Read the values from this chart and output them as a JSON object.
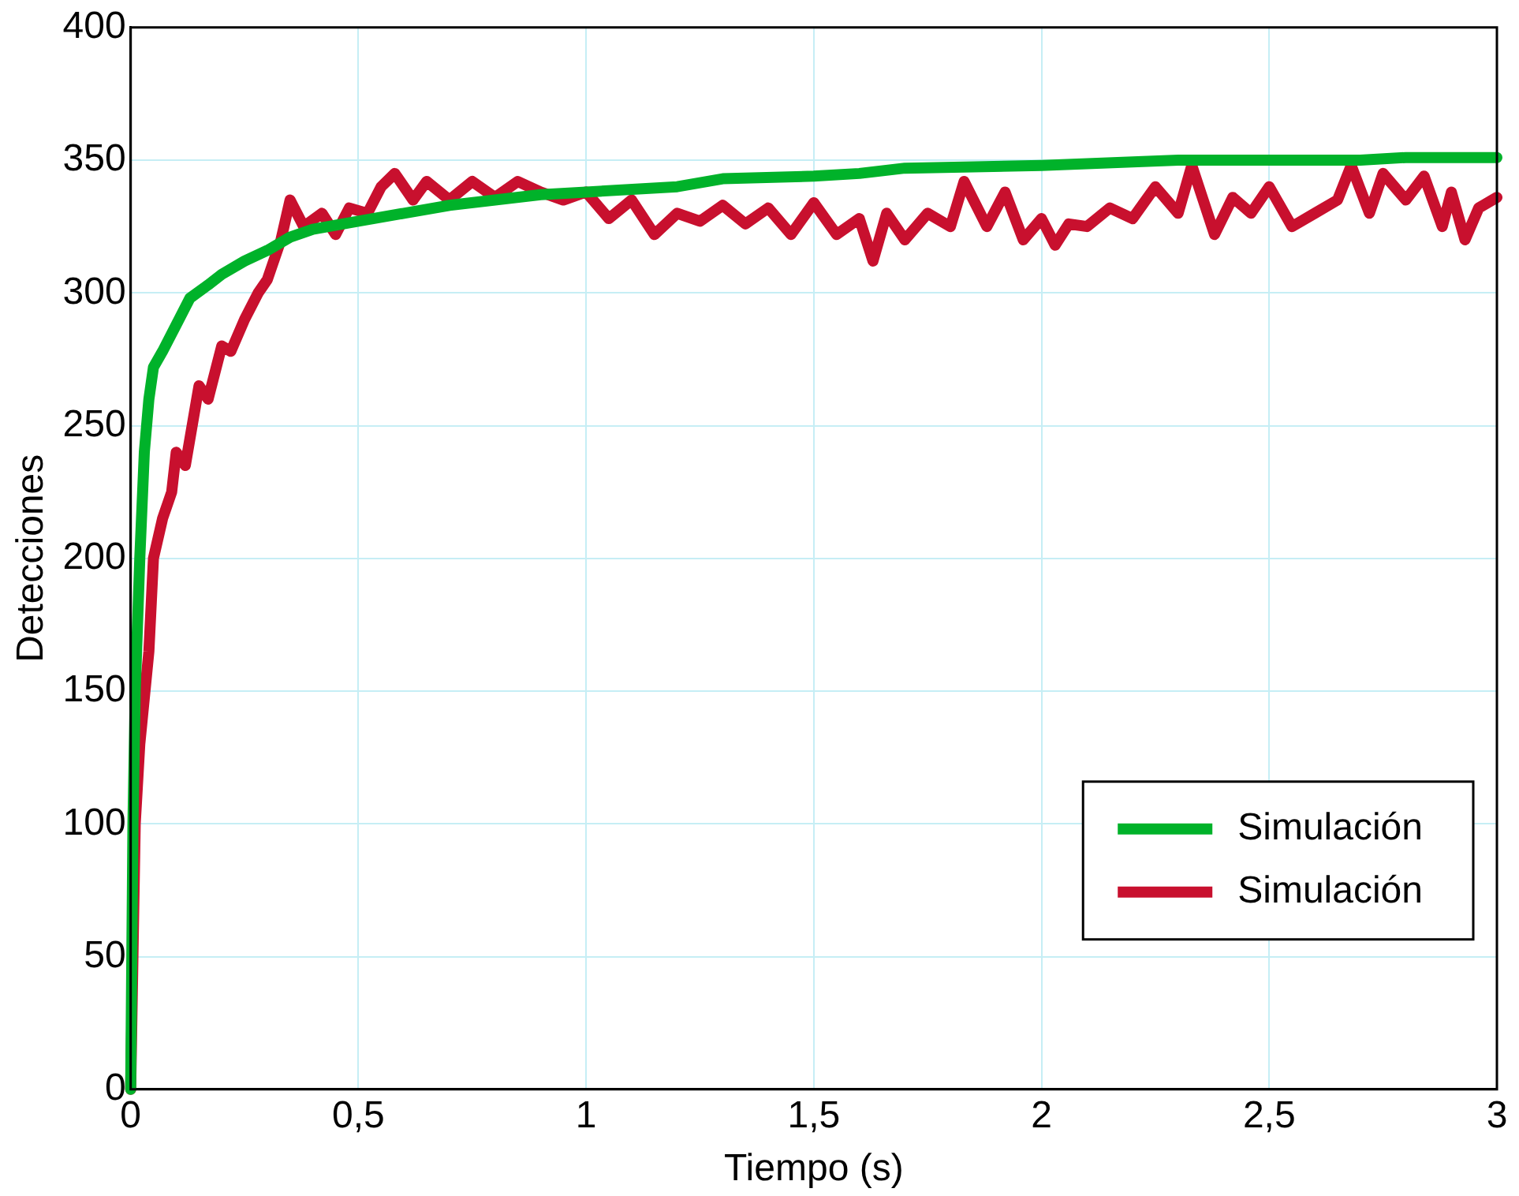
{
  "chart_data": {
    "type": "line",
    "xlabel": "Tiempo (s)",
    "ylabel": "Detecciones",
    "xlim": [
      0,
      3
    ],
    "ylim": [
      0,
      400
    ],
    "xticks": [
      0,
      {
        "value": 0.5,
        "label": "0,5"
      },
      1,
      {
        "value": 1.5,
        "label": "1,5"
      },
      2,
      {
        "value": 2.5,
        "label": "2,5"
      },
      3
    ],
    "yticks": [
      0,
      50,
      100,
      150,
      200,
      250,
      300,
      350,
      400
    ],
    "grid": true,
    "legend": "bottom right",
    "marker": "none",
    "line_style": "solid",
    "series": [
      {
        "name": "Simulación",
        "color": "#00b22a",
        "x": [
          0,
          0.005,
          0.01,
          0.02,
          0.03,
          0.04,
          0.05,
          0.07,
          0.1,
          0.13,
          0.17,
          0.2,
          0.25,
          0.3,
          0.35,
          0.4,
          0.5,
          0.6,
          0.7,
          0.8,
          0.9,
          1.0,
          1.2,
          1.3,
          1.5,
          1.6,
          1.7,
          2.0,
          2.3,
          2.7,
          2.8,
          3
        ],
        "values": [
          0,
          100,
          150,
          200,
          240,
          260,
          272,
          278,
          288,
          298,
          303,
          307,
          312,
          316,
          321,
          324,
          327,
          330,
          333,
          335,
          337,
          338,
          340,
          343,
          344,
          345,
          347,
          348,
          350,
          350,
          351,
          351
        ]
      },
      {
        "name": "Simulación",
        "color": "#c8102e",
        "x": [
          0,
          0.01,
          0.02,
          0.04,
          0.05,
          0.07,
          0.09,
          0.1,
          0.12,
          0.15,
          0.17,
          0.2,
          0.22,
          0.25,
          0.28,
          0.3,
          0.33,
          0.35,
          0.38,
          0.42,
          0.45,
          0.48,
          0.52,
          0.55,
          0.58,
          0.62,
          0.65,
          0.7,
          0.75,
          0.8,
          0.85,
          0.9,
          0.95,
          1.0,
          1.05,
          1.1,
          1.15,
          1.2,
          1.25,
          1.3,
          1.35,
          1.4,
          1.45,
          1.5,
          1.55,
          1.6,
          1.63,
          1.66,
          1.7,
          1.75,
          1.8,
          1.83,
          1.88,
          1.92,
          1.96,
          2.0,
          2.03,
          2.06,
          2.1,
          2.15,
          2.2,
          2.25,
          2.3,
          2.33,
          2.38,
          2.42,
          2.46,
          2.5,
          2.55,
          2.6,
          2.65,
          2.68,
          2.72,
          2.75,
          2.8,
          2.84,
          2.88,
          2.9,
          2.93,
          2.96,
          3.0
        ],
        "values": [
          0,
          100,
          130,
          165,
          200,
          215,
          225,
          240,
          235,
          265,
          260,
          280,
          278,
          290,
          300,
          305,
          320,
          335,
          325,
          330,
          322,
          332,
          330,
          340,
          345,
          335,
          342,
          335,
          342,
          336,
          342,
          338,
          335,
          338,
          328,
          335,
          322,
          330,
          327,
          333,
          326,
          332,
          322,
          334,
          322,
          328,
          312,
          330,
          320,
          330,
          325,
          342,
          325,
          338,
          320,
          328,
          318,
          326,
          325,
          332,
          328,
          340,
          330,
          348,
          322,
          336,
          330,
          340,
          325,
          330,
          335,
          348,
          330,
          345,
          335,
          344,
          325,
          338,
          320,
          332,
          336
        ]
      }
    ]
  }
}
